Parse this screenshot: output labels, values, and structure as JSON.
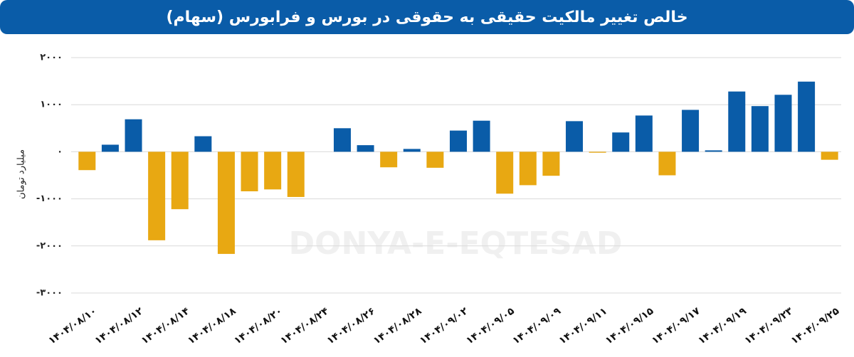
{
  "chart_data": {
    "type": "bar",
    "title": "خالص تغییر مالکیت حقیقی به حقوقی در بورس و فرابورس (سهام)",
    "y_axis_label": "میلیارد تومان",
    "watermark": "DONYA-E-EQTESAD",
    "categories": [
      "۱۴۰۴/۰۸/۱۰",
      null,
      "۱۴۰۴/۰۸/۱۲",
      null,
      "۱۴۰۴/۰۸/۱۴",
      null,
      "۱۴۰۴/۰۸/۱۸",
      null,
      "۱۴۰۴/۰۸/۲۰",
      null,
      "۱۴۰۴/۰۸/۲۴",
      null,
      "۱۴۰۴/۰۸/۲۶",
      null,
      "۱۴۰۴/۰۸/۲۸",
      null,
      "۱۴۰۴/۰۹/۰۲",
      null,
      "۱۴۰۴/۰۹/۰۵",
      null,
      "۱۴۰۴/۰۹/۰۹",
      null,
      "۱۴۰۴/۰۹/۱۱",
      null,
      "۱۴۰۴/۰۹/۱۵",
      null,
      "۱۴۰۴/۰۹/۱۷",
      null,
      "۱۴۰۴/۰۹/۱۹",
      null,
      "۱۴۰۴/۰۹/۲۳",
      null,
      "۱۴۰۴/۰۹/۲۵"
    ],
    "values": [
      -390,
      150,
      690,
      -1880,
      -1220,
      330,
      -2170,
      -840,
      -800,
      -960,
      null,
      500,
      140,
      -330,
      60,
      -340,
      450,
      660,
      -890,
      -710,
      -510,
      650,
      -20,
      410,
      770,
      -500,
      890,
      30,
      1280,
      970,
      1210,
      1490,
      -170
    ],
    "positive_color": "#0a5ca8",
    "negative_color": "#e8a812",
    "ylim": [
      -3000,
      2000
    ],
    "yticks": [
      {
        "value": -3000,
        "label": "-۳۰۰۰"
      },
      {
        "value": -2000,
        "label": "-۲۰۰۰"
      },
      {
        "value": -1000,
        "label": "-۱۰۰۰"
      },
      {
        "value": 0,
        "label": "۰"
      },
      {
        "value": 1000,
        "label": "۱۰۰۰"
      },
      {
        "value": 2000,
        "label": "۲۰۰۰"
      }
    ],
    "grid": true
  }
}
